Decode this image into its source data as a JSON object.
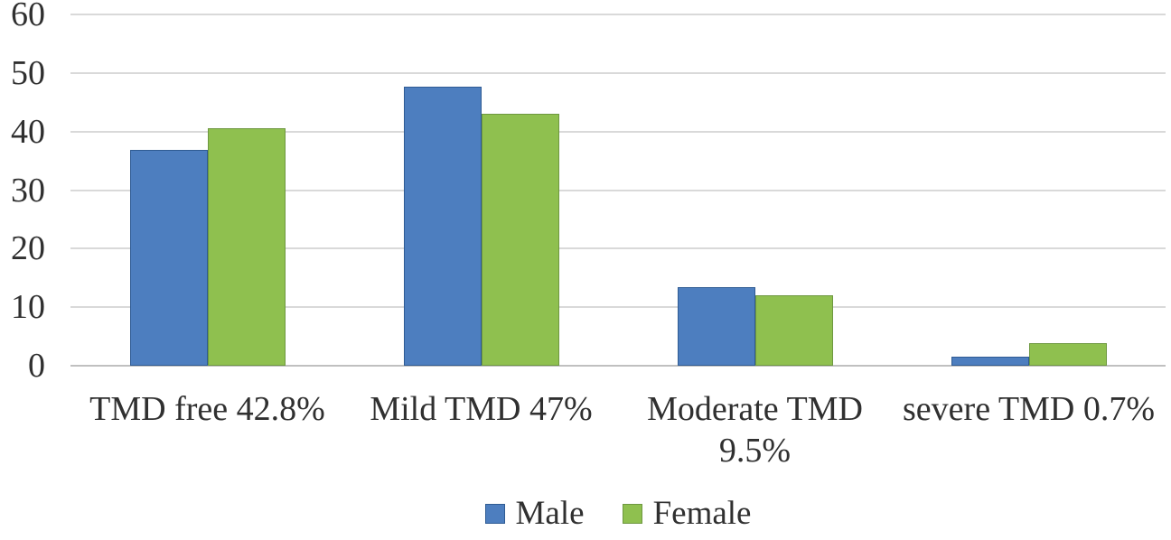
{
  "colors": {
    "male": "#4d7ebf",
    "male_border": "#2f5b93",
    "female": "#8fc04f",
    "female_border": "#6e9840",
    "gridline": "#d9d9d9",
    "axis_line": "#c0c0c0",
    "text": "#303030",
    "background": "#ffffff"
  },
  "chart_data": {
    "type": "bar",
    "title": "",
    "xlabel": "",
    "ylabel": "",
    "categories": [
      "TMD free 42.8%",
      "Mild TMD 47%",
      "Moderate TMD 9.5%",
      "severe TMD 0.7%"
    ],
    "category_lines": [
      [
        "TMD free 42.8%"
      ],
      [
        "Mild TMD 47%"
      ],
      [
        "Moderate TMD",
        "9.5%"
      ],
      [
        "severe TMD 0.7%"
      ]
    ],
    "series": [
      {
        "name": "Male",
        "color_key": "male",
        "values": [
          36.9,
          47.7,
          13.4,
          1.6
        ]
      },
      {
        "name": "Female",
        "color_key": "female",
        "values": [
          40.6,
          43.0,
          12.1,
          3.9
        ]
      }
    ],
    "ylim": [
      0,
      60
    ],
    "ytick_interval": 10,
    "yticks": [
      0,
      10,
      20,
      30,
      40,
      50,
      60
    ],
    "grid": "horizontal-only",
    "legend_position": "bottom",
    "legend": [
      "Male",
      "Female"
    ]
  }
}
